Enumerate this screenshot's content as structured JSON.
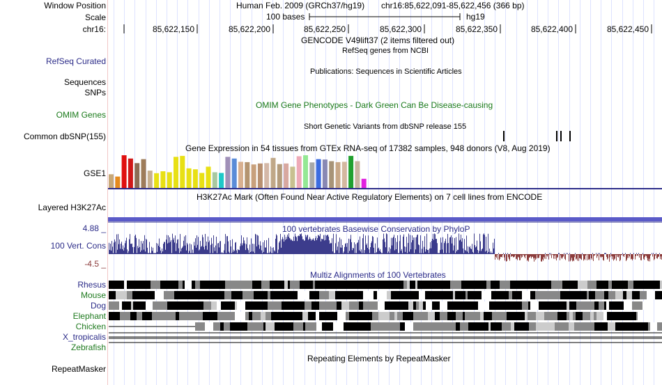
{
  "labels": {
    "window_position": "Window Position",
    "scale": "Scale",
    "chrom": "chr16:",
    "refseq": "RefSeq Curated",
    "sequences": "Sequences",
    "snps": "SNPs",
    "omim": "OMIM Genes",
    "dbsnp": "Common dbSNP(155)",
    "gse1": "GSE1",
    "h3k27ac": "Layered H3K27Ac",
    "cons_max": "4.88 _",
    "cons_name": "100 Vert. Cons",
    "cons_min": "-4.5 _",
    "species": [
      "Rhesus",
      "Mouse",
      "Dog",
      "Elephant",
      "Chicken",
      "X_tropicalis",
      "Zebrafish"
    ],
    "repeatmasker": "RepeatMasker"
  },
  "header": {
    "assembly": "Human Feb. 2009 (GRCh37/hg19)",
    "position": "chr16:85,622,091-85,622,456 (366 bp)",
    "scale_text": "100 bases",
    "scale_db": "hg19",
    "ticks": [
      "85,622,150",
      "85,622,200",
      "85,622,250",
      "85,622,300",
      "85,622,350",
      "85,622,400",
      "85,622,450"
    ]
  },
  "tracks": {
    "gencode": "GENCODE V49lift37 (2 items filtered out)",
    "refseq_desc": "RefSeq genes from NCBI",
    "publications": "Publications: Sequences in Scientific Articles",
    "omim_desc": "OMIM Gene Phenotypes - Dark Green Can Be Disease-causing",
    "dbsnp_desc": "Short Genetic Variants from dbSNP release 155",
    "gtex_desc": "Gene Expression in 54 tissues from GTEx RNA-seq of 17382 samples, 948 donors (V8, Aug 2019)",
    "h3k27ac_desc": "H3K27Ac Mark (Often Found Near Active Regulatory Elements) on 7 cell lines from ENCODE",
    "cons_desc": "100 vertebrates Basewise Conservation by PhyloP",
    "multiz_desc": "Multiz Alignments of 100 Vertebrates",
    "repeat_desc": "Repeating Elements by RepeatMasker"
  },
  "colors": {
    "track_blue": "#2b2b88",
    "omim_green": "#1a7a1a",
    "species_green": "#1f7a1f",
    "cons_pos": "#3c3c8c",
    "cons_neg": "#8c3c3c",
    "gridline": "#dde2ff",
    "h3k27ac": "#3a3aa0"
  },
  "gtex_colors": [
    "#c8a878",
    "#e68a1e",
    "#e01010",
    "#d01818",
    "#8c6c54",
    "#9e7c5a",
    "#c8b090",
    "#e8e014",
    "#e8e014",
    "#e8e014",
    "#e8e014",
    "#e8e014",
    "#e8e014",
    "#e8e014",
    "#e8e014",
    "#e8e014",
    "#a8c8a0",
    "#1ec8c8",
    "#a090b8",
    "#5a8cd8",
    "#d8b090",
    "#b49470",
    "#c8a07c",
    "#b89070",
    "#d4b8a8",
    "#c0a888",
    "#b49c7c",
    "#d8a8a0",
    "#c8c090",
    "#eeaab8",
    "#94e894",
    "#a8a8a8",
    "#3c6ce0",
    "#8888b4",
    "#a89478",
    "#c8a888",
    "#d4b8a0",
    "#20a030",
    "#c8b4a0",
    "#e020e0"
  ],
  "gtex_values": [
    42,
    35,
    100,
    90,
    76,
    88,
    53,
    45,
    51,
    48,
    95,
    98,
    60,
    57,
    46,
    65,
    48,
    46,
    95,
    90,
    80,
    79,
    72,
    75,
    76,
    92,
    73,
    75,
    65,
    97,
    100,
    78,
    88,
    87,
    82,
    79,
    80,
    98,
    82,
    28
  ],
  "dbsnp_positions": [
    85622350,
    85622385,
    85622388,
    85622394
  ],
  "cons_profile": "0.9,0.2,-0.3",
  "region": {
    "start": 85622091,
    "end": 85622456
  }
}
